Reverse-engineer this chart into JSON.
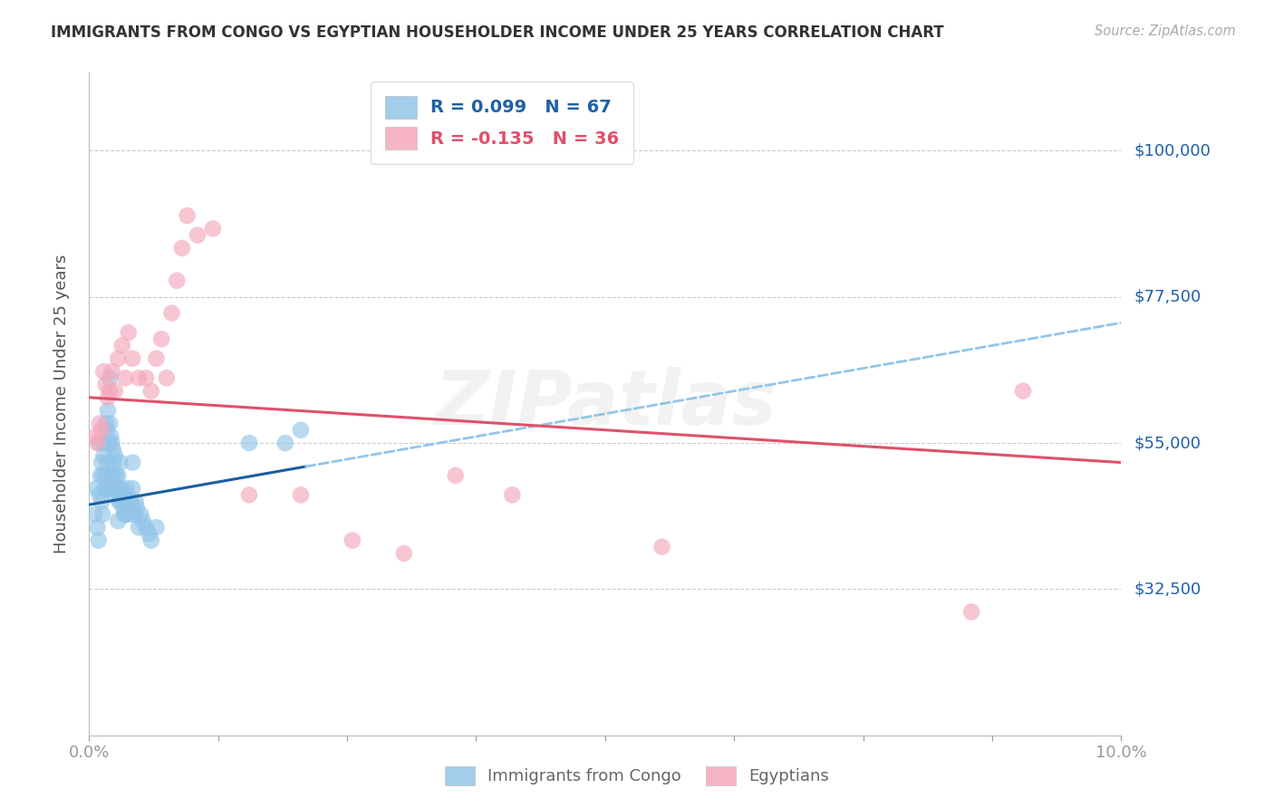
{
  "title": "IMMIGRANTS FROM CONGO VS EGYPTIAN HOUSEHOLDER INCOME UNDER 25 YEARS CORRELATION CHART",
  "source": "Source: ZipAtlas.com",
  "ylabel": "Householder Income Under 25 years",
  "ytick_labels": [
    "$100,000",
    "$77,500",
    "$55,000",
    "$32,500"
  ],
  "ytick_values": [
    100000,
    77500,
    55000,
    32500
  ],
  "xmin": 0.0,
  "xmax": 10.0,
  "ymin": 10000,
  "ymax": 112000,
  "legend_entry1": "R = 0.099   N = 67",
  "legend_entry2": "R = -0.135   N = 36",
  "legend_label1": "Immigrants from Congo",
  "legend_label2": "Egyptians",
  "congo_color": "#92C5E8",
  "egypt_color": "#F4A8BC",
  "congo_line_color": "#1A5FA0",
  "egypt_line_color": "#E0506A",
  "dashed_line_color": "#92C5E8",
  "watermark": "ZIPatlas",
  "congo_x": [
    0.05,
    0.07,
    0.08,
    0.09,
    0.1,
    0.1,
    0.11,
    0.12,
    0.12,
    0.13,
    0.13,
    0.14,
    0.15,
    0.15,
    0.16,
    0.16,
    0.17,
    0.17,
    0.18,
    0.18,
    0.19,
    0.19,
    0.2,
    0.2,
    0.21,
    0.21,
    0.22,
    0.22,
    0.23,
    0.23,
    0.24,
    0.25,
    0.25,
    0.26,
    0.27,
    0.28,
    0.29,
    0.3,
    0.3,
    0.31,
    0.32,
    0.33,
    0.34,
    0.35,
    0.36,
    0.37,
    0.38,
    0.4,
    0.41,
    0.42,
    0.44,
    0.45,
    0.46,
    0.48,
    0.5,
    0.52,
    0.55,
    0.58,
    0.6,
    0.65,
    0.2,
    0.28,
    0.35,
    0.42,
    1.55,
    1.9,
    2.05
  ],
  "congo_y": [
    44000,
    48000,
    42000,
    40000,
    55000,
    47000,
    50000,
    52000,
    46000,
    50000,
    44000,
    53000,
    55000,
    48000,
    58000,
    50000,
    57000,
    48000,
    60000,
    52000,
    55000,
    48000,
    58000,
    50000,
    56000,
    48000,
    55000,
    50000,
    54000,
    48000,
    52000,
    53000,
    47000,
    50000,
    48000,
    50000,
    46000,
    52000,
    46000,
    48000,
    47000,
    45000,
    44000,
    46000,
    48000,
    47000,
    44000,
    46000,
    45000,
    48000,
    44000,
    46000,
    45000,
    42000,
    44000,
    43000,
    42000,
    41000,
    40000,
    42000,
    65000,
    43000,
    44000,
    52000,
    55000,
    55000,
    57000
  ],
  "egypt_x": [
    0.06,
    0.08,
    0.1,
    0.12,
    0.14,
    0.16,
    0.18,
    0.2,
    0.22,
    0.25,
    0.28,
    0.32,
    0.35,
    0.38,
    0.42,
    0.48,
    0.55,
    0.6,
    0.65,
    0.7,
    0.75,
    0.8,
    0.85,
    0.9,
    0.95,
    1.05,
    1.2,
    1.55,
    2.05,
    2.55,
    3.05,
    3.55,
    4.1,
    5.55,
    8.55,
    9.05
  ],
  "egypt_y": [
    56000,
    55000,
    58000,
    57000,
    66000,
    64000,
    62000,
    63000,
    66000,
    63000,
    68000,
    70000,
    65000,
    72000,
    68000,
    65000,
    65000,
    63000,
    68000,
    71000,
    65000,
    75000,
    80000,
    85000,
    90000,
    87000,
    88000,
    47000,
    47000,
    40000,
    38000,
    50000,
    47000,
    39000,
    29000,
    63000
  ]
}
